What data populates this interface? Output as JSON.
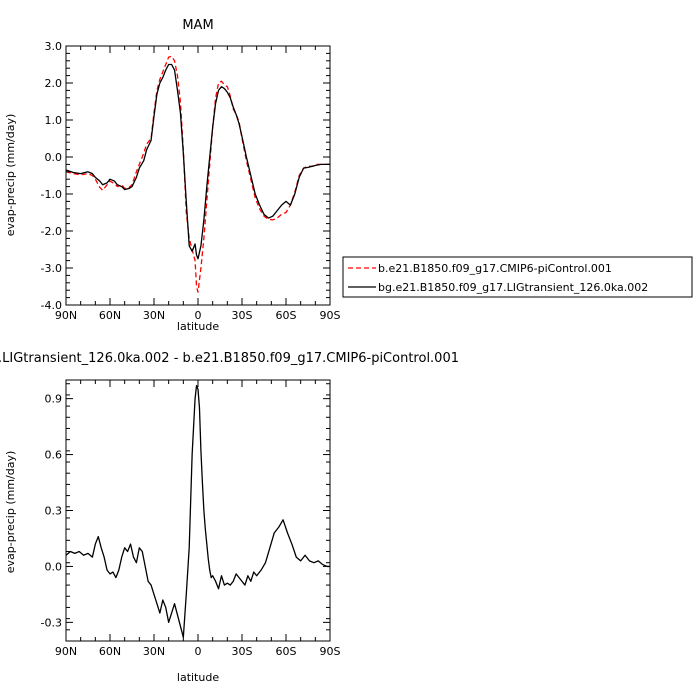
{
  "chart_data": [
    {
      "type": "line",
      "title": "MAM",
      "xlabel": "latitude",
      "ylabel": "evap-precip (mm/day)",
      "xlim": [
        90,
        -90
      ],
      "ylim": [
        -4.0,
        3.0
      ],
      "x_ticks": [
        90,
        60,
        30,
        0,
        -30,
        -60,
        -90
      ],
      "x_tick_labels": [
        "90N",
        "60N",
        "30N",
        "0",
        "30S",
        "60S",
        "90S"
      ],
      "y_ticks": [
        -4.0,
        -3.0,
        -2.0,
        -1.0,
        0.0,
        1.0,
        2.0,
        3.0
      ],
      "y_tick_labels": [
        "-4.0",
        "-3.0",
        "-2.0",
        "-1.0",
        "0.0",
        "1.0",
        "2.0",
        "3.0"
      ],
      "legend": "right",
      "series": [
        {
          "name": "b.e21.B1850.f09_g17.CMIP6-piControl.001",
          "color": "#ff0000",
          "style": "dashed",
          "x": [
            90,
            85,
            80,
            75,
            72,
            70,
            67,
            65,
            62,
            60,
            57,
            55,
            52,
            50,
            47,
            45,
            42,
            40,
            37,
            35,
            32,
            30,
            28,
            26,
            24,
            22,
            20,
            18,
            16,
            14,
            12,
            10,
            8,
            6,
            4,
            2,
            1,
            0,
            -2,
            -4,
            -6,
            -8,
            -10,
            -12,
            -14,
            -16,
            -18,
            -20,
            -22,
            -24,
            -26,
            -28,
            -30,
            -33,
            -36,
            -39,
            -42,
            -45,
            -48,
            -51,
            -54,
            -57,
            -60,
            -63,
            -66,
            -69,
            -72,
            -75,
            -78,
            -81,
            -84,
            -87,
            -90
          ],
          "y": [
            -0.4,
            -0.45,
            -0.48,
            -0.45,
            -0.5,
            -0.6,
            -0.82,
            -0.9,
            -0.75,
            -0.65,
            -0.72,
            -0.8,
            -0.75,
            -0.85,
            -0.82,
            -0.75,
            -0.4,
            -0.2,
            0.1,
            0.35,
            0.5,
            1.2,
            1.8,
            2.1,
            2.3,
            2.5,
            2.7,
            2.72,
            2.6,
            2.2,
            1.5,
            0.2,
            -1.5,
            -2.2,
            -2.5,
            -2.8,
            -3.5,
            -3.65,
            -3.0,
            -2.2,
            -1.2,
            -0.2,
            0.8,
            1.6,
            2.0,
            2.05,
            1.95,
            1.9,
            1.65,
            1.3,
            1.15,
            0.95,
            0.5,
            -0.1,
            -0.6,
            -1.1,
            -1.4,
            -1.6,
            -1.68,
            -1.7,
            -1.65,
            -1.55,
            -1.5,
            -1.3,
            -0.95,
            -0.5,
            -0.3,
            -0.25,
            -0.25,
            -0.2,
            -0.2,
            -0.2,
            -0.2
          ]
        },
        {
          "name": "bg.e21.B1850.f09_g17.LIGtransient_126.0ka.002",
          "color": "#000000",
          "style": "solid",
          "x": [
            90,
            85,
            80,
            75,
            72,
            70,
            67,
            65,
            62,
            60,
            57,
            55,
            52,
            50,
            47,
            45,
            42,
            40,
            37,
            35,
            32,
            30,
            28,
            26,
            24,
            22,
            20,
            18,
            16,
            14,
            12,
            10,
            8,
            6,
            4,
            2,
            1,
            0,
            -2,
            -4,
            -6,
            -8,
            -10,
            -12,
            -14,
            -16,
            -18,
            -20,
            -22,
            -24,
            -26,
            -28,
            -30,
            -33,
            -36,
            -39,
            -42,
            -45,
            -48,
            -51,
            -54,
            -57,
            -60,
            -63,
            -66,
            -69,
            -72,
            -75,
            -78,
            -81,
            -84,
            -87,
            -90
          ],
          "y": [
            -0.35,
            -0.42,
            -0.45,
            -0.4,
            -0.45,
            -0.55,
            -0.65,
            -0.75,
            -0.7,
            -0.6,
            -0.65,
            -0.75,
            -0.8,
            -0.88,
            -0.85,
            -0.8,
            -0.55,
            -0.3,
            -0.1,
            0.2,
            0.45,
            1.1,
            1.7,
            2.0,
            2.15,
            2.35,
            2.5,
            2.5,
            2.35,
            1.8,
            1.2,
            0.1,
            -1.2,
            -2.4,
            -2.55,
            -2.35,
            -2.65,
            -2.75,
            -2.4,
            -1.7,
            -0.8,
            0.0,
            0.8,
            1.45,
            1.8,
            1.9,
            1.85,
            1.75,
            1.6,
            1.35,
            1.15,
            0.9,
            0.55,
            0.0,
            -0.5,
            -1.0,
            -1.3,
            -1.55,
            -1.65,
            -1.6,
            -1.45,
            -1.3,
            -1.2,
            -1.3,
            -1.0,
            -0.55,
            -0.3,
            -0.28,
            -0.25,
            -0.22,
            -0.2,
            -0.2,
            -0.2
          ]
        }
      ]
    },
    {
      "type": "line",
      "title": ".LIGtransient_126.0ka.002 - b.e21.B1850.f09_g17.CMIP6-piControl.001",
      "xlabel": "latitude",
      "ylabel": "evap-precip (mm/day)",
      "xlim": [
        90,
        -90
      ],
      "ylim": [
        -0.4,
        1.0
      ],
      "x_ticks": [
        90,
        60,
        30,
        0,
        -30,
        -60,
        -90
      ],
      "x_tick_labels": [
        "90N",
        "60N",
        "30N",
        "0",
        "30S",
        "60S",
        "90S"
      ],
      "y_ticks": [
        -0.3,
        0.0,
        0.3,
        0.6,
        0.9
      ],
      "y_tick_labels": [
        "-0.3",
        "0.0",
        "0.3",
        "0.6",
        "0.9"
      ],
      "series": [
        {
          "color": "#000000",
          "style": "solid",
          "x": [
            90,
            87,
            84,
            81,
            78,
            75,
            72,
            70,
            68,
            66,
            64,
            62,
            60,
            58,
            56,
            54,
            52,
            50,
            48,
            46,
            44,
            42,
            40,
            38,
            36,
            34,
            32,
            30,
            28,
            26,
            24,
            22,
            20,
            18,
            16,
            14,
            12,
            10,
            8,
            6,
            4,
            2,
            1,
            0,
            -1,
            -2,
            -3,
            -4,
            -5,
            -6,
            -7,
            -8,
            -9,
            -10,
            -12,
            -14,
            -16,
            -18,
            -20,
            -22,
            -24,
            -26,
            -28,
            -30,
            -32,
            -34,
            -36,
            -38,
            -40,
            -43,
            -46,
            -49,
            -52,
            -55,
            -58,
            -61,
            -64,
            -67,
            -70,
            -73,
            -76,
            -79,
            -82,
            -85,
            -88,
            -90
          ],
          "y": [
            0.06,
            0.08,
            0.07,
            0.08,
            0.06,
            0.07,
            0.05,
            0.12,
            0.16,
            0.1,
            0.05,
            -0.02,
            -0.04,
            -0.03,
            -0.06,
            -0.02,
            0.05,
            0.1,
            0.08,
            0.12,
            0.05,
            0.02,
            0.1,
            0.08,
            0.0,
            -0.08,
            -0.1,
            -0.15,
            -0.2,
            -0.25,
            -0.18,
            -0.22,
            -0.3,
            -0.25,
            -0.2,
            -0.26,
            -0.32,
            -0.38,
            -0.15,
            0.1,
            0.6,
            0.9,
            0.97,
            0.95,
            0.85,
            0.62,
            0.45,
            0.3,
            0.2,
            0.12,
            0.04,
            -0.02,
            -0.06,
            -0.05,
            -0.08,
            -0.12,
            -0.05,
            -0.1,
            -0.09,
            -0.1,
            -0.08,
            -0.04,
            -0.06,
            -0.08,
            -0.1,
            -0.05,
            -0.08,
            -0.03,
            -0.05,
            -0.02,
            0.02,
            0.1,
            0.18,
            0.21,
            0.25,
            0.18,
            0.12,
            0.05,
            0.03,
            0.06,
            0.03,
            0.02,
            0.03,
            0.01,
            0.0,
            0.0
          ]
        }
      ]
    }
  ]
}
